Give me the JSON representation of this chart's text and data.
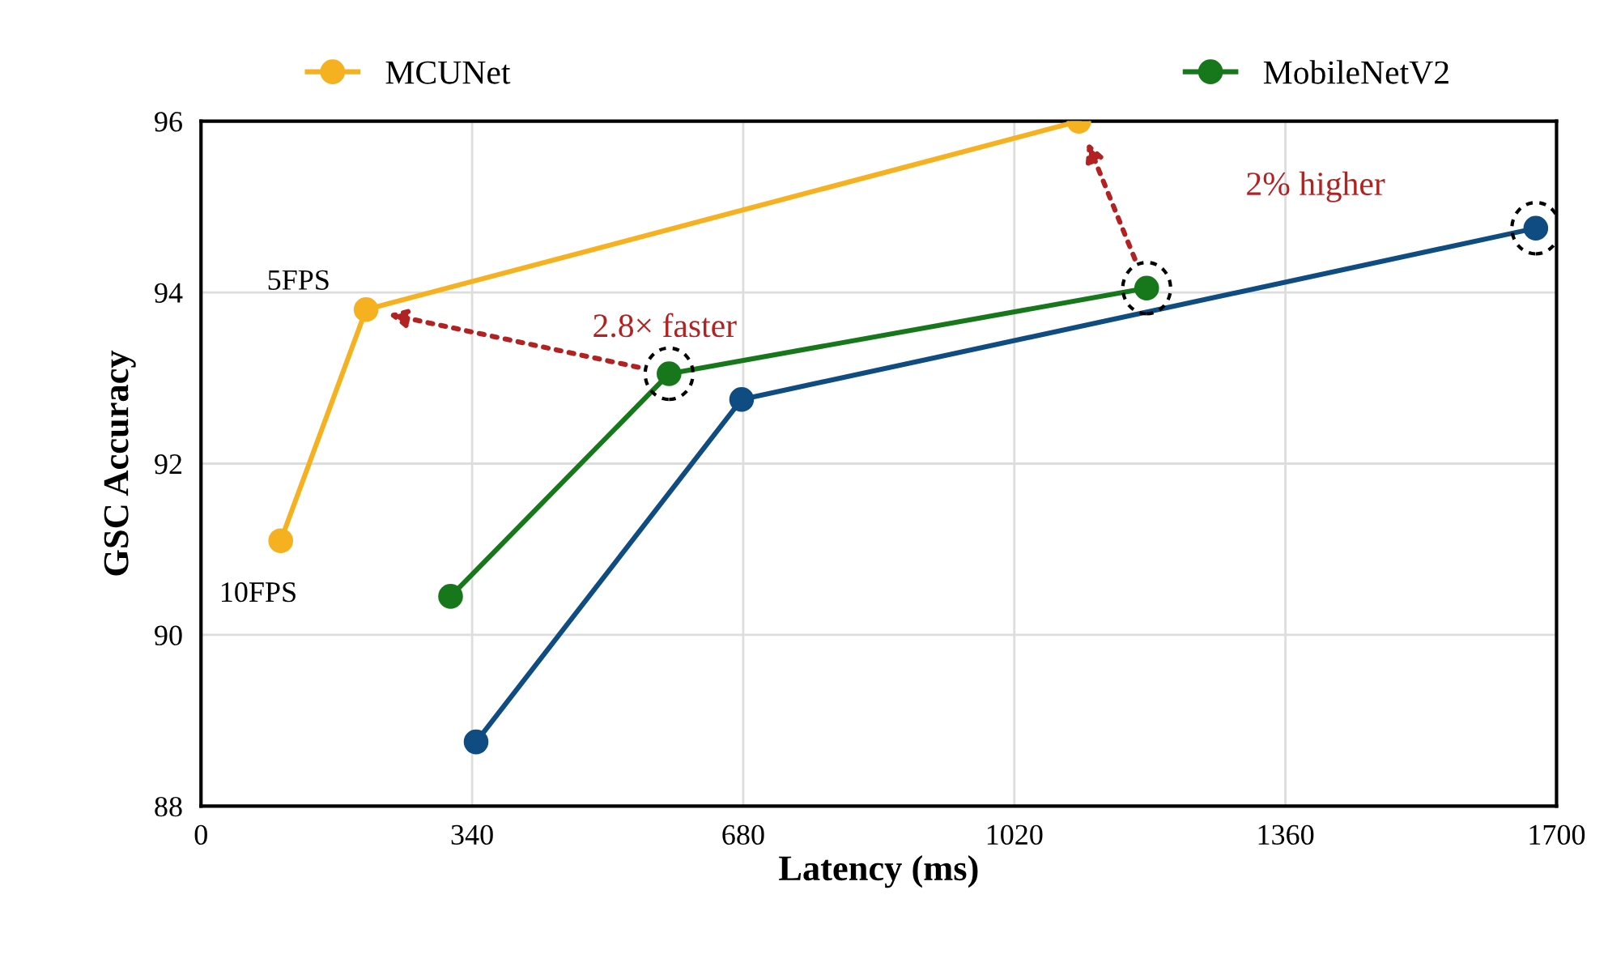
{
  "chart_data": {
    "type": "line",
    "xlabel": "Latency (ms)",
    "ylabel": "GSC Accuracy",
    "xlim": [
      0,
      1700
    ],
    "xticks": [
      0,
      340,
      680,
      1020,
      1360,
      1700
    ],
    "ylim": [
      88,
      96
    ],
    "yticks": [
      88,
      90,
      92,
      94,
      96
    ],
    "series": [
      {
        "name": "MCUNet",
        "color": "#f5b120",
        "x": [
          100,
          207,
          1101
        ],
        "values": [
          91.1,
          93.8,
          96.0
        ]
      },
      {
        "name": "MobileNetV2",
        "color": "#16781a",
        "x": [
          313,
          587,
          1186
        ],
        "values": [
          90.45,
          93.05,
          94.05
        ]
      },
      {
        "color": "#0f4c81",
        "x": [
          345,
          678,
          1674
        ],
        "values": [
          88.75,
          92.75,
          94.75
        ]
      }
    ],
    "annotations": [
      {
        "text": "5FPS",
        "x": 207,
        "y": 93.8
      },
      {
        "text": "10FPS",
        "x": 100,
        "y": 91.1
      },
      "2.8× faster",
      "2% higher"
    ],
    "grid": true,
    "legend": "top",
    "marker": "circle",
    "line_style": "solid"
  }
}
